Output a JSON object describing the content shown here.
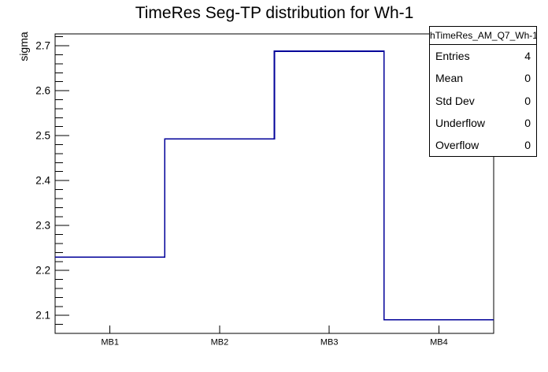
{
  "title": "TimeRes Seg-TP distribution for Wh-1",
  "y_axis_title": "sigma",
  "stats_box": {
    "header": "hTimeRes_AM_Q7_Wh-1",
    "rows": [
      {
        "label": "Entries",
        "value": "4"
      },
      {
        "label": "Mean",
        "value": "0"
      },
      {
        "label": "Std Dev",
        "value": "0"
      },
      {
        "label": "Underflow",
        "value": "0"
      },
      {
        "label": "Overflow",
        "value": "0"
      }
    ]
  },
  "chart_data": {
    "type": "line",
    "subtype": "step-histogram",
    "title": "TimeRes Seg-TP distribution for Wh-1",
    "xlabel": "",
    "ylabel": "sigma",
    "categories": [
      "MB1",
      "MB2",
      "MB3",
      "MB4"
    ],
    "values": [
      2.23,
      2.493,
      2.688,
      2.09
    ],
    "x_bin_centers": [
      1,
      2,
      3,
      4
    ],
    "x_bin_width": 1,
    "xlim": [
      0.5,
      4.5
    ],
    "ylim": [
      2.06,
      2.7265
    ],
    "y_major_ticks": [
      2.1,
      2.2,
      2.3,
      2.4,
      2.5,
      2.6,
      2.7
    ],
    "y_minor_step": 0.02,
    "grid": false,
    "legend": false,
    "line_color": "#000099",
    "frame_color": "#000000",
    "background_color": "#ffffff"
  }
}
